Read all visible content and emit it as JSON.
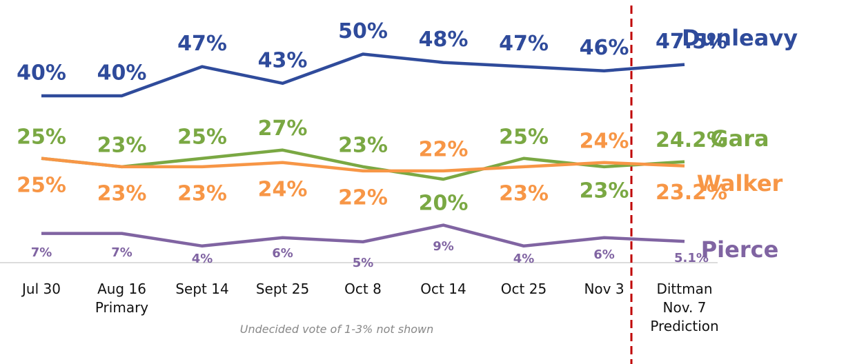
{
  "chart_data": {
    "type": "line",
    "categories": [
      "Jul 30",
      "Aug 16\nPrimary",
      "Sept 14",
      "Sept 25",
      "Oct 8",
      "Oct 14",
      "Oct 25",
      "Nov 3",
      "Dittman\nNov. 7\nPrediction"
    ],
    "ylim": [
      0,
      63
    ],
    "note": "Undecided vote of 1-3% not shown",
    "series": [
      {
        "name": "Dunleavy",
        "color": "#2f4b9b",
        "values": [
          40,
          40,
          47,
          43,
          50,
          48,
          47,
          46,
          47.5
        ],
        "value_labels": [
          "40%",
          "40%",
          "47%",
          "43%",
          "50%",
          "48%",
          "47%",
          "46%",
          "47.5%"
        ]
      },
      {
        "name": "Gara",
        "color": "#7aa843",
        "values": [
          25,
          23,
          25,
          27,
          23,
          20,
          25,
          23,
          24.2
        ],
        "value_labels": [
          "25%",
          "23%",
          "25%",
          "27%",
          "23%",
          "20%",
          "25%",
          "23%",
          "24.2%"
        ]
      },
      {
        "name": "Walker",
        "color": "#f79646",
        "values": [
          25,
          23,
          23,
          24,
          22,
          22,
          23,
          24,
          23.2
        ],
        "value_labels": [
          "25%",
          "23%",
          "23%",
          "24%",
          "22%",
          "22%",
          "23%",
          "24%",
          "23.2%"
        ]
      },
      {
        "name": "Pierce",
        "color": "#8064a2",
        "values": [
          7,
          7,
          4,
          6,
          5,
          9,
          4,
          6,
          5.1
        ],
        "value_labels": [
          "7%",
          "7%",
          "4%",
          "6%",
          "5%",
          "9%",
          "4%",
          "6%",
          "5.1%"
        ]
      }
    ]
  }
}
